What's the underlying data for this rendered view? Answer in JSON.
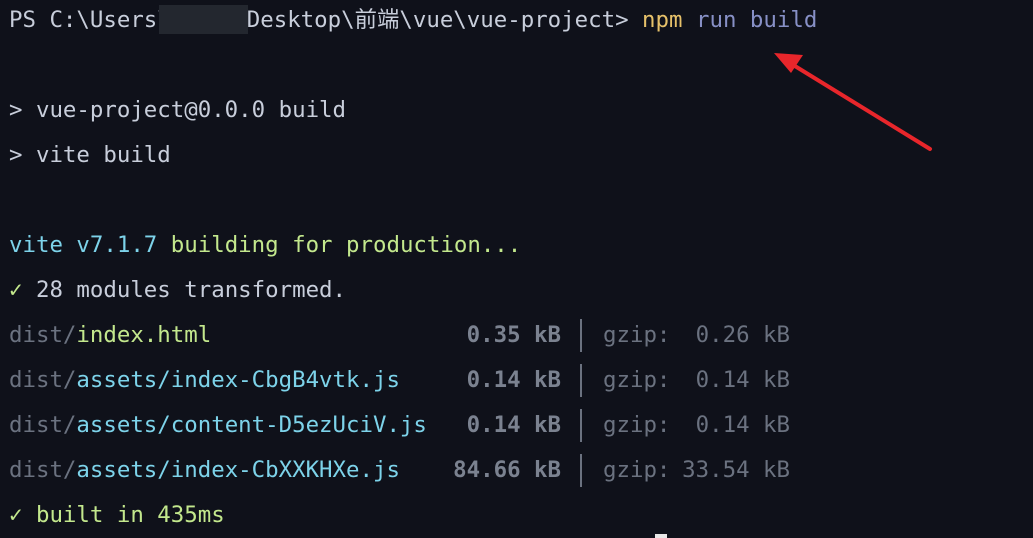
{
  "terminal": {
    "prompt": "PS C:\\Users\\",
    "prompt_rest": "Desktop\\前端\\vue\\vue-project> ",
    "cmd_npm": "npm",
    "cmd_args": " run build",
    "script_line1": "> vue-project@0.0.0 build",
    "script_line2": "> vite build",
    "vite_version": "vite v7.1.7",
    "vite_status": " building for production...",
    "transformed_check": "✓",
    "transformed": " 28 modules transformed.",
    "files": [
      {
        "dir": "dist/",
        "name": "index.html",
        "kind": "html",
        "size": "0.35 kB",
        "gzip_label": "gzip:",
        "gzip": "0.26 kB"
      },
      {
        "dir": "dist/",
        "name": "assets/index-CbgB4vtk.js",
        "kind": "js",
        "size": "0.14 kB",
        "gzip_label": "gzip:",
        "gzip": "0.14 kB"
      },
      {
        "dir": "dist/",
        "name": "assets/content-D5ezUciV.js",
        "kind": "js",
        "size": "0.14 kB",
        "gzip_label": "gzip:",
        "gzip": "0.14 kB"
      },
      {
        "dir": "dist/",
        "name": "assets/index-CbXXKHXe.js",
        "kind": "js",
        "size": "84.66 kB",
        "gzip_label": "gzip:",
        "gzip": "33.54 kB"
      }
    ],
    "built_check": "✓",
    "built": " built in 435ms"
  },
  "colors": {
    "background": "#0f111a",
    "annotation_arrow": "#e8262b"
  }
}
